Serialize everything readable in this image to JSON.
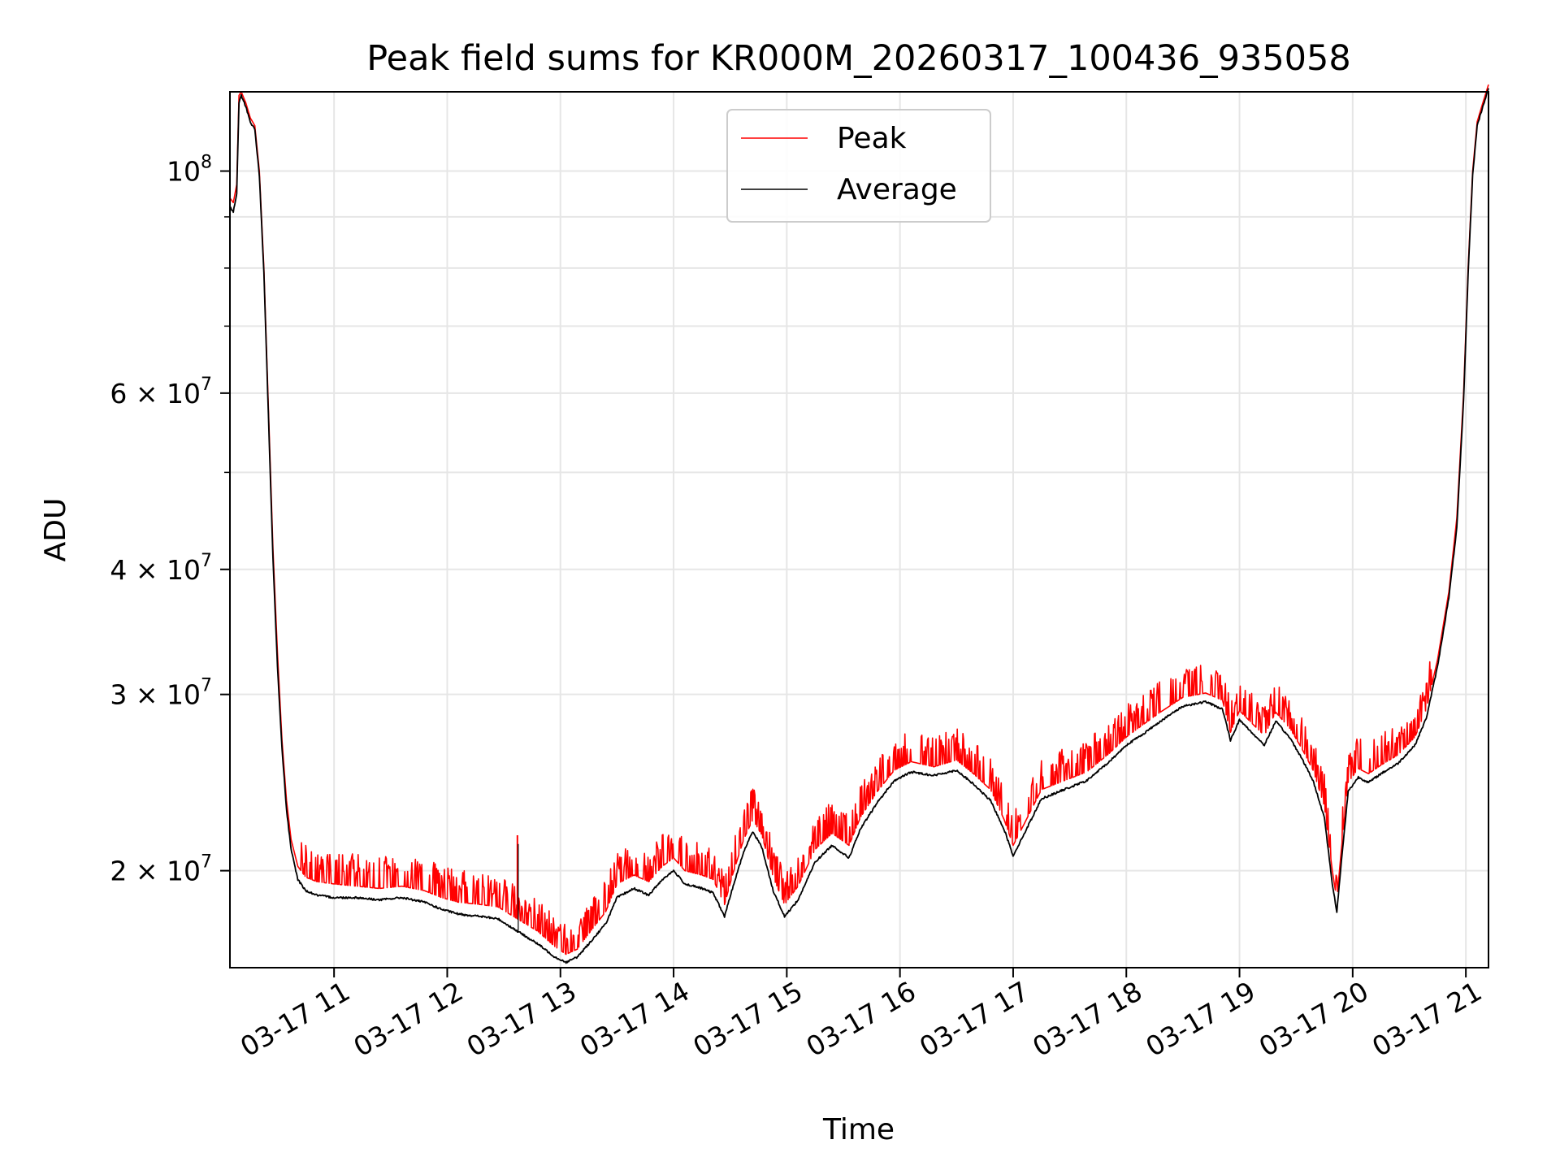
{
  "chart_data": {
    "type": "line",
    "title": "Peak field sums for KR000M_20260317_100436_935058",
    "xlabel": "Time",
    "ylabel": "ADU",
    "yscale": "log",
    "xlim_hours": [
      10.08,
      21.2
    ],
    "ylim": [
      16000000,
      120000000
    ],
    "grid": true,
    "legend_position": "top-center",
    "x_ticks": [
      {
        "hour": 11,
        "label": "03-17 11"
      },
      {
        "hour": 12,
        "label": "03-17 12"
      },
      {
        "hour": 13,
        "label": "03-17 13"
      },
      {
        "hour": 14,
        "label": "03-17 14"
      },
      {
        "hour": 15,
        "label": "03-17 15"
      },
      {
        "hour": 16,
        "label": "03-17 16"
      },
      {
        "hour": 17,
        "label": "03-17 17"
      },
      {
        "hour": 18,
        "label": "03-17 18"
      },
      {
        "hour": 19,
        "label": "03-17 19"
      },
      {
        "hour": 20,
        "label": "03-17 20"
      },
      {
        "hour": 21,
        "label": "03-17 21"
      }
    ],
    "y_major_ticks": [
      {
        "value": 20000000,
        "mantissa": "2",
        "exponent": "7"
      },
      {
        "value": 30000000,
        "mantissa": "3",
        "exponent": "7"
      },
      {
        "value": 40000000,
        "mantissa": "4",
        "exponent": "7"
      },
      {
        "value": 60000000,
        "mantissa": "6",
        "exponent": "7"
      },
      {
        "value": 100000000,
        "mantissa": "",
        "exponent": "8"
      }
    ],
    "y_minor_ticks": [
      50000000,
      70000000,
      80000000,
      90000000
    ],
    "times_sign": "×",
    "base": "10",
    "series": [
      {
        "name": "Peak",
        "color": "#ff0000",
        "spiky": true,
        "points": [
          [
            10.08,
            94000000
          ],
          [
            10.11,
            93000000
          ],
          [
            10.14,
            97000000
          ],
          [
            10.16,
            119000000
          ],
          [
            10.18,
            120000000
          ],
          [
            10.22,
            117000000
          ],
          [
            10.26,
            113000000
          ],
          [
            10.3,
            111000000
          ],
          [
            10.34,
            100000000
          ],
          [
            10.38,
            80000000
          ],
          [
            10.42,
            58000000
          ],
          [
            10.46,
            42000000
          ],
          [
            10.5,
            33000000
          ],
          [
            10.54,
            27000000
          ],
          [
            10.58,
            23500000
          ],
          [
            10.62,
            21500000
          ],
          [
            10.68,
            20200000
          ],
          [
            10.75,
            19700000
          ],
          [
            10.85,
            19500000
          ],
          [
            11.0,
            19400000
          ],
          [
            11.2,
            19300000
          ],
          [
            11.4,
            19200000
          ],
          [
            11.6,
            19300000
          ],
          [
            11.8,
            19100000
          ],
          [
            11.95,
            18800000
          ],
          [
            12.1,
            18600000
          ],
          [
            12.3,
            18500000
          ],
          [
            12.45,
            18400000
          ],
          [
            12.62,
            17900000
          ],
          [
            12.8,
            17400000
          ],
          [
            12.95,
            16800000
          ],
          [
            13.05,
            16500000
          ],
          [
            13.15,
            16700000
          ],
          [
            13.25,
            17300000
          ],
          [
            13.4,
            18200000
          ],
          [
            13.5,
            19400000
          ],
          [
            13.65,
            19800000
          ],
          [
            13.78,
            19500000
          ],
          [
            13.9,
            20200000
          ],
          [
            14.0,
            20600000
          ],
          [
            14.1,
            20000000
          ],
          [
            14.25,
            19800000
          ],
          [
            14.35,
            19600000
          ],
          [
            14.45,
            18500000
          ],
          [
            14.52,
            19800000
          ],
          [
            14.62,
            21500000
          ],
          [
            14.7,
            22500000
          ],
          [
            14.78,
            21700000
          ],
          [
            14.88,
            19700000
          ],
          [
            14.98,
            18500000
          ],
          [
            15.1,
            19300000
          ],
          [
            15.25,
            21000000
          ],
          [
            15.4,
            21800000
          ],
          [
            15.55,
            21200000
          ],
          [
            15.65,
            22600000
          ],
          [
            15.8,
            24000000
          ],
          [
            15.95,
            25200000
          ],
          [
            16.1,
            25700000
          ],
          [
            16.3,
            25400000
          ],
          [
            16.5,
            25800000
          ],
          [
            16.65,
            25000000
          ],
          [
            16.8,
            24100000
          ],
          [
            16.92,
            22500000
          ],
          [
            17.0,
            21200000
          ],
          [
            17.1,
            22300000
          ],
          [
            17.25,
            24100000
          ],
          [
            17.45,
            24600000
          ],
          [
            17.65,
            25100000
          ],
          [
            17.85,
            26200000
          ],
          [
            18.0,
            27200000
          ],
          [
            18.15,
            28000000
          ],
          [
            18.3,
            28800000
          ],
          [
            18.5,
            29800000
          ],
          [
            18.7,
            30100000
          ],
          [
            18.85,
            29600000
          ],
          [
            18.92,
            27500000
          ],
          [
            19.0,
            28900000
          ],
          [
            19.12,
            28000000
          ],
          [
            19.22,
            27300000
          ],
          [
            19.32,
            28800000
          ],
          [
            19.45,
            27700000
          ],
          [
            19.55,
            26500000
          ],
          [
            19.65,
            25200000
          ],
          [
            19.75,
            23200000
          ],
          [
            19.82,
            20000000
          ],
          [
            19.86,
            18700000
          ],
          [
            19.9,
            21000000
          ],
          [
            19.96,
            24500000
          ],
          [
            20.05,
            25300000
          ],
          [
            20.14,
            25000000
          ],
          [
            20.25,
            25500000
          ],
          [
            20.4,
            26100000
          ],
          [
            20.55,
            27200000
          ],
          [
            20.65,
            29000000
          ],
          [
            20.75,
            32500000
          ],
          [
            20.85,
            38000000
          ],
          [
            20.92,
            45000000
          ],
          [
            20.98,
            60000000
          ],
          [
            21.02,
            80000000
          ],
          [
            21.06,
            100000000
          ],
          [
            21.1,
            112000000
          ],
          [
            21.15,
            117000000
          ],
          [
            21.2,
            122000000
          ]
        ]
      },
      {
        "name": "Average",
        "color": "#000000",
        "spiky": false,
        "points": [
          [
            10.08,
            92000000
          ],
          [
            10.11,
            91000000
          ],
          [
            10.14,
            95000000
          ],
          [
            10.16,
            117000000
          ],
          [
            10.18,
            119000000
          ],
          [
            10.22,
            116000000
          ],
          [
            10.26,
            112000000
          ],
          [
            10.3,
            110000000
          ],
          [
            10.34,
            99000000
          ],
          [
            10.38,
            79000000
          ],
          [
            10.42,
            57000000
          ],
          [
            10.46,
            41000000
          ],
          [
            10.5,
            32000000
          ],
          [
            10.54,
            26500000
          ],
          [
            10.58,
            23000000
          ],
          [
            10.62,
            21000000
          ],
          [
            10.68,
            19600000
          ],
          [
            10.75,
            19100000
          ],
          [
            10.85,
            18900000
          ],
          [
            11.0,
            18800000
          ],
          [
            11.2,
            18800000
          ],
          [
            11.4,
            18700000
          ],
          [
            11.6,
            18800000
          ],
          [
            11.8,
            18600000
          ],
          [
            11.95,
            18300000
          ],
          [
            12.1,
            18100000
          ],
          [
            12.3,
            18000000
          ],
          [
            12.45,
            17900000
          ],
          [
            12.62,
            17400000
          ],
          [
            12.8,
            16900000
          ],
          [
            12.95,
            16400000
          ],
          [
            13.05,
            16200000
          ],
          [
            13.15,
            16400000
          ],
          [
            13.25,
            16900000
          ],
          [
            13.4,
            17700000
          ],
          [
            13.5,
            18800000
          ],
          [
            13.65,
            19200000
          ],
          [
            13.78,
            18900000
          ],
          [
            13.9,
            19600000
          ],
          [
            14.0,
            20000000
          ],
          [
            14.1,
            19400000
          ],
          [
            14.25,
            19200000
          ],
          [
            14.35,
            19000000
          ],
          [
            14.45,
            18000000
          ],
          [
            14.52,
            19200000
          ],
          [
            14.62,
            20900000
          ],
          [
            14.7,
            21900000
          ],
          [
            14.78,
            21100000
          ],
          [
            14.88,
            19100000
          ],
          [
            14.98,
            18000000
          ],
          [
            15.1,
            18700000
          ],
          [
            15.25,
            20400000
          ],
          [
            15.4,
            21200000
          ],
          [
            15.55,
            20600000
          ],
          [
            15.65,
            22000000
          ],
          [
            15.8,
            23400000
          ],
          [
            15.95,
            24600000
          ],
          [
            16.1,
            25100000
          ],
          [
            16.3,
            24900000
          ],
          [
            16.5,
            25200000
          ],
          [
            16.65,
            24400000
          ],
          [
            16.8,
            23500000
          ],
          [
            16.92,
            22000000
          ],
          [
            17.0,
            20700000
          ],
          [
            17.1,
            21800000
          ],
          [
            17.25,
            23600000
          ],
          [
            17.45,
            24100000
          ],
          [
            17.65,
            24600000
          ],
          [
            17.85,
            25700000
          ],
          [
            18.0,
            26700000
          ],
          [
            18.15,
            27400000
          ],
          [
            18.3,
            28200000
          ],
          [
            18.5,
            29200000
          ],
          [
            18.7,
            29500000
          ],
          [
            18.85,
            29000000
          ],
          [
            18.92,
            27000000
          ],
          [
            19.0,
            28300000
          ],
          [
            19.12,
            27400000
          ],
          [
            19.22,
            26700000
          ],
          [
            19.32,
            28200000
          ],
          [
            19.45,
            27100000
          ],
          [
            19.55,
            25900000
          ],
          [
            19.65,
            24600000
          ],
          [
            19.75,
            22600000
          ],
          [
            19.82,
            19400000
          ],
          [
            19.86,
            18200000
          ],
          [
            19.9,
            20400000
          ],
          [
            19.96,
            24000000
          ],
          [
            20.05,
            24800000
          ],
          [
            20.14,
            24500000
          ],
          [
            20.25,
            25000000
          ],
          [
            20.4,
            25600000
          ],
          [
            20.55,
            26700000
          ],
          [
            20.65,
            28400000
          ],
          [
            20.75,
            32000000
          ],
          [
            20.85,
            37500000
          ],
          [
            20.92,
            44000000
          ],
          [
            20.98,
            59000000
          ],
          [
            21.02,
            79000000
          ],
          [
            21.06,
            99000000
          ],
          [
            21.1,
            111000000
          ],
          [
            21.15,
            116000000
          ],
          [
            21.2,
            121000000
          ]
        ]
      }
    ],
    "spike_events": [
      {
        "hour": 12.62,
        "value": 21700000
      }
    ]
  }
}
